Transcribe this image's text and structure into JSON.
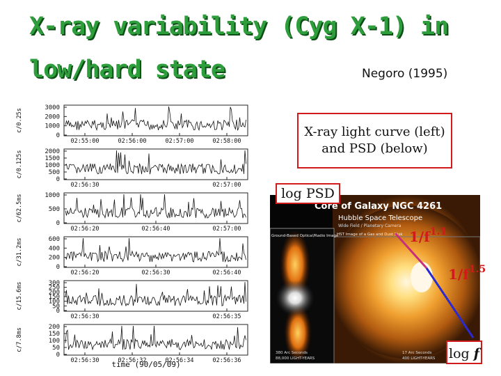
{
  "slide": {
    "title_line1": "X-ray variability (Cyg X-1) in",
    "title_line2": "low/hard state",
    "reference": "Negoro (1995)",
    "callout_line1": "X-ray light curve (left)",
    "callout_line2": "and PSD (below)",
    "psd_ylabel": "log PSD",
    "psd_xlabel_text": "log",
    "psd_xlabel_var": "f",
    "slope1_base": "1/f",
    "slope1_exp": "1.1",
    "slope2_base": "1/f",
    "slope2_exp": "1.5",
    "accent_color": "#2e9e3c",
    "box_color": "#d11a1a",
    "slope_line1_color": "#c8307a",
    "slope_line2_color": "#2a2ad0"
  },
  "light_curves": {
    "xlabel": "time (90/05/09)",
    "panels": [
      {
        "ylabel": "c/0.25s",
        "yticks": [
          "3000",
          "2000",
          "1000",
          "0"
        ],
        "xticks": [
          "02:55:00",
          "02:56:00",
          "02:57:00",
          "02:58:00"
        ]
      },
      {
        "ylabel": "c/0.125s",
        "yticks": [
          "2000",
          "1500",
          "1000",
          "500",
          "0"
        ],
        "xticks": [
          "02:56:30",
          "02:57:00"
        ]
      },
      {
        "ylabel": "c/62.5ms",
        "yticks": [
          "1000",
          "500",
          "0"
        ],
        "xticks": [
          "02:56:20",
          "02:56:40",
          "02:57:00"
        ]
      },
      {
        "ylabel": "c/31.2ms",
        "yticks": [
          "600",
          "400",
          "200",
          "0"
        ],
        "xticks": [
          "02:56:20",
          "02:56:30",
          "02:56:40"
        ]
      },
      {
        "ylabel": "c/15.6ms",
        "yticks": [
          "300",
          "250",
          "200",
          "150",
          "100",
          "50",
          "0"
        ],
        "xticks": [
          "02:56:30",
          "02:56:35"
        ]
      },
      {
        "ylabel": "c/7.8ms",
        "yticks": [
          "200",
          "150",
          "100",
          "50",
          "0"
        ],
        "xticks": [
          "02:56:30",
          "02:56:32",
          "02:56:34",
          "02:56:36"
        ]
      }
    ]
  },
  "galaxy_image": {
    "title": "Core of Galaxy NGC 4261",
    "subtitle": "Hubble Space Telescope",
    "instrument": "Wide Field / Planetary Camera",
    "left_caption": "Ground-Based Optical/Radio Image",
    "right_caption": "HST Image of a Gas and Dust Disk",
    "bottom_left_1": "380 Arc Seconds",
    "bottom_left_2": "88,000 LIGHT-YEARS",
    "bottom_right_1": "17 Arc Seconds",
    "bottom_right_2": "400 LIGHT-YEARS"
  }
}
